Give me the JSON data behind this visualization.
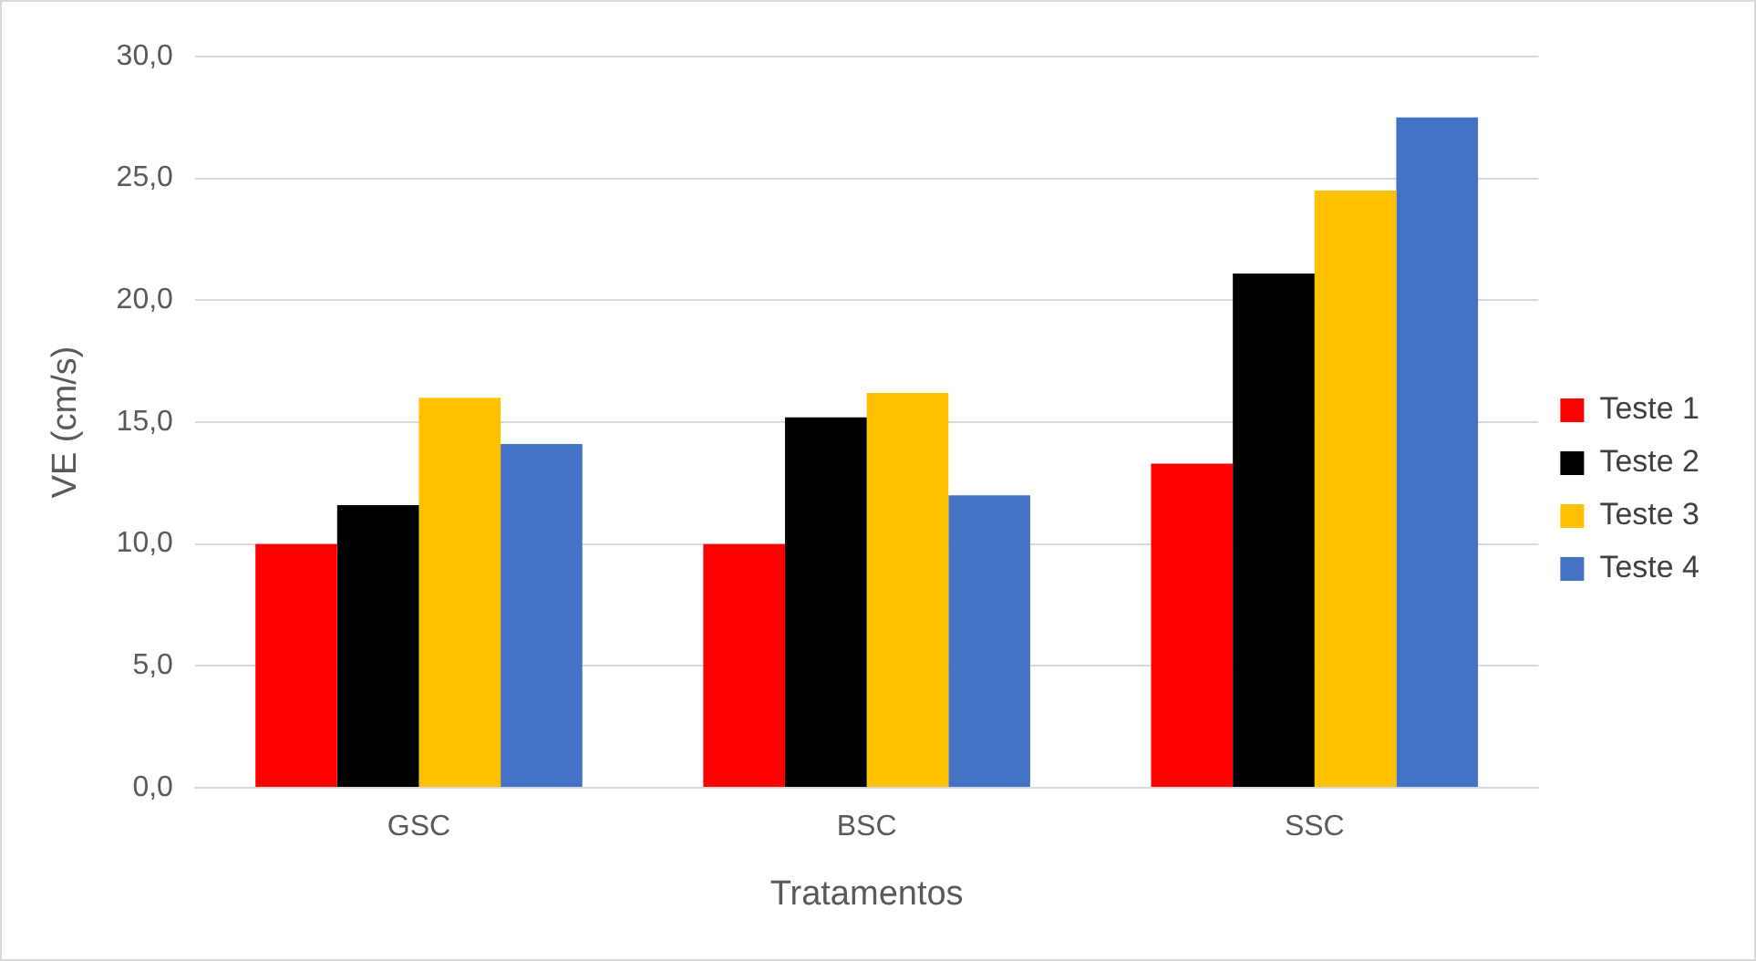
{
  "chart_data": {
    "type": "bar",
    "xlabel": "Tratamentos",
    "ylabel": "VE (cm/s)",
    "categories": [
      "GSC",
      "BSC",
      "SSC"
    ],
    "series": [
      {
        "name": "Teste 1",
        "color": "#ff0000",
        "values": [
          10.0,
          10.0,
          13.3
        ]
      },
      {
        "name": "Teste 2",
        "color": "#000000",
        "values": [
          11.6,
          15.2,
          21.1
        ]
      },
      {
        "name": "Teste 3",
        "color": "#ffc000",
        "values": [
          16.0,
          16.2,
          24.5
        ]
      },
      {
        "name": "Teste 4",
        "color": "#4472c4",
        "values": [
          14.1,
          12.0,
          27.5
        ]
      }
    ],
    "ylim": [
      0,
      30
    ],
    "yticks": [
      {
        "value": 0,
        "label": "0,0"
      },
      {
        "value": 5,
        "label": "5,0"
      },
      {
        "value": 10,
        "label": "10,0"
      },
      {
        "value": 15,
        "label": "15,0"
      },
      {
        "value": 20,
        "label": "20,0"
      },
      {
        "value": 25,
        "label": "25,0"
      },
      {
        "value": 30,
        "label": "30,0"
      }
    ],
    "grid": "y",
    "legend": "right"
  }
}
